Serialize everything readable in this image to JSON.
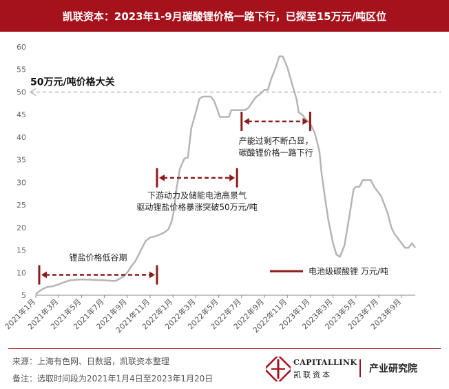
{
  "header": {
    "title": "凯联资本：2023年1-9月碳酸锂价格一路下行，已探至15万元/吨区位"
  },
  "chart_data": {
    "type": "line",
    "ylim": [
      5,
      60
    ],
    "yticks": [
      5,
      10,
      15,
      20,
      25,
      30,
      35,
      40,
      45,
      50,
      55,
      60
    ],
    "x_ticks": [
      "2021年1月",
      "2021年3月",
      "2021年5月",
      "2021年7月",
      "2021年9月",
      "2021年11月",
      "2022年1月",
      "2022年3月",
      "2022年5月",
      "2022年7月",
      "2022年9月",
      "2022年11月",
      "2023年1月",
      "2023年3月",
      "2023年5月",
      "2023年7月",
      "2023年9月"
    ],
    "series": [
      {
        "name": "电池级碳酸锂 万元/吨",
        "x": [
          0,
          0.25,
          0.5,
          0.8,
          1,
          1.5,
          2,
          2.5,
          3,
          4,
          5,
          6,
          6.7,
          7,
          7.3,
          7.7,
          8,
          8.3,
          8.7,
          9,
          9.3,
          9.6,
          10,
          10.4,
          10.7,
          11,
          11.3,
          11.6,
          11.9,
          12.1,
          12.3,
          12.6,
          13,
          13.3,
          13.6,
          14,
          14.3,
          14.6,
          15,
          15.3,
          15.6,
          15.9,
          16.1,
          16.4,
          16.6,
          16.9,
          17.1,
          17.3,
          17.5,
          17.8,
          18,
          18.3,
          18.6,
          19,
          19.3,
          19.6,
          20,
          20.3,
          20.6,
          21,
          21.3,
          21.6,
          22,
          22.4,
          22.8,
          23,
          23.3,
          23.6,
          24,
          24.4,
          24.8,
          25,
          25.3,
          25.6,
          26,
          26.3,
          26.6,
          27,
          27.4,
          27.8,
          28,
          28.3,
          28.6,
          29,
          29.3,
          29.6,
          29.9,
          30.2,
          30.5,
          30.8,
          31.1,
          31.4,
          31.7,
          32,
          32.3,
          32.6,
          32.9,
          33.2
        ],
        "values": [
          5.2,
          5.8,
          6.2,
          6.6,
          6.8,
          7.0,
          7.4,
          7.9,
          8.3,
          8.5,
          8.4,
          8.3,
          8.2,
          8.2,
          8.6,
          9.2,
          10.0,
          11.2,
          12.5,
          14.0,
          15.5,
          17.0,
          17.8,
          18.0,
          18.3,
          18.6,
          19.0,
          19.6,
          21.5,
          24.0,
          28.5,
          33.0,
          35.3,
          35.5,
          42.0,
          45.5,
          48.5,
          49.0,
          49.0,
          49.0,
          48.0,
          46.0,
          44.5,
          44.5,
          44.5,
          44.5,
          46.0,
          46.0,
          46.0,
          46.0,
          46.0,
          46.0,
          46.5,
          48.0,
          49.0,
          49.5,
          50.5,
          50.5,
          53.0,
          55.5,
          57.9,
          57.9,
          55.5,
          52.0,
          48.5,
          45.5,
          45.0,
          44.0,
          43.0,
          41.0,
          37.0,
          32.0,
          26.5,
          21.5,
          16.5,
          14.0,
          13.5,
          16.0,
          22.0,
          28.5,
          29.0,
          29.0,
          30.5,
          30.5,
          30.5,
          29.0,
          28.0,
          27.0,
          25.0,
          23.0,
          20.0,
          18.5,
          17.5,
          16.5,
          15.5,
          15.5,
          16.5,
          15.5
        ]
      }
    ],
    "reference_line": {
      "value": 50,
      "label": "50万元/吨价格大关"
    },
    "annotations": [
      {
        "text": "锂盐价格低谷期",
        "x_start": 0.3,
        "x_end": 10.6,
        "y": 9.5,
        "text_y": 12.7
      },
      {
        "text": "下游动力及储能电池高景气\n驱动锂盐价格暴涨突破50万元/吨",
        "x_start": 10.6,
        "x_end": 17.6,
        "y": 31.0,
        "text_y": 26.5
      },
      {
        "text": "产能过剩不断凸显，\n碳酸锂价格一路下行",
        "x_start": 18.0,
        "x_end": 24.0,
        "y": 43.5,
        "text_y": 38.5
      }
    ],
    "legend": "bottom-right",
    "grid": false
  },
  "footer": {
    "source": "来源：上海有色网、日数据，凯联资本整理",
    "note": "备注：选取时间段为2021年1月4日至2023年1月20日"
  },
  "brand": {
    "name_en": "CAPITALLINK",
    "name_cn": "凯联资本",
    "subtitle": "产业研究院"
  },
  "colors": {
    "accent": "#a6121c",
    "line": "#b5b5b5",
    "annotation": "#8b1a1a",
    "reference": "#bbbbbb"
  }
}
